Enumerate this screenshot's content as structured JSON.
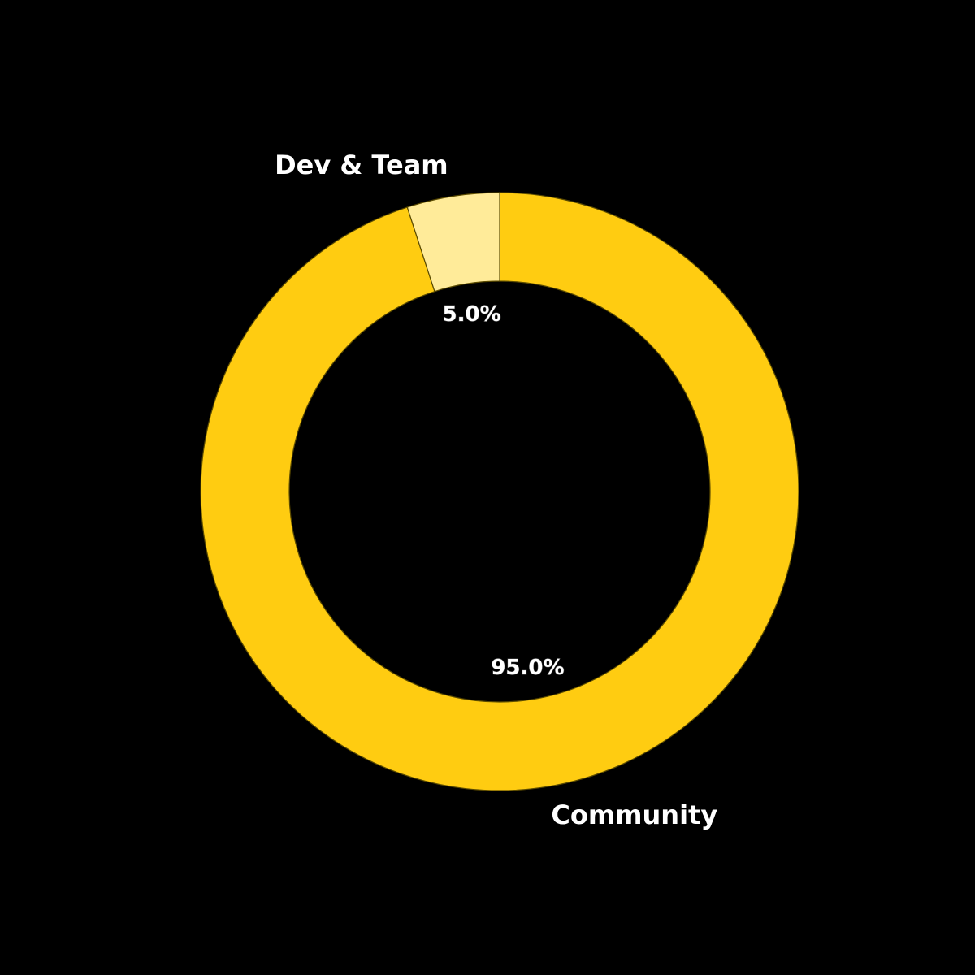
{
  "chart_data": {
    "type": "pie",
    "variant": "donut",
    "start_angle_deg": 90,
    "direction": "clockwise",
    "background_color": "#000000",
    "edge_color": "#5a4a00",
    "slices": [
      {
        "label": "Community",
        "value": 95.0,
        "pct_label": "95.0%",
        "color": "#FFCC11"
      },
      {
        "label": "Dev & Team",
        "value": 5.0,
        "pct_label": "5.0%",
        "color": "#FFEB99"
      }
    ]
  }
}
